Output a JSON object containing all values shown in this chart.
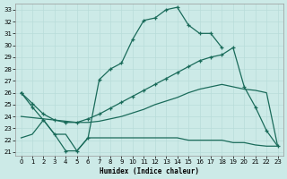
{
  "xlabel": "Humidex (Indice chaleur)",
  "bg_color": "#cceae7",
  "line_color": "#1a6b5a",
  "grid_color": "#b8ddd9",
  "xlim": [
    -0.5,
    23.5
  ],
  "ylim": [
    20.7,
    33.5
  ],
  "xticks": [
    0,
    1,
    2,
    3,
    4,
    5,
    6,
    7,
    8,
    9,
    10,
    11,
    12,
    13,
    14,
    15,
    16,
    17,
    18,
    19,
    20,
    21,
    22,
    23
  ],
  "yticks": [
    21,
    22,
    23,
    24,
    25,
    26,
    27,
    28,
    29,
    30,
    31,
    32,
    33
  ],
  "c1_x": [
    0,
    1,
    2,
    3,
    4,
    5,
    6,
    7,
    8,
    9,
    10,
    11,
    12,
    13,
    14,
    15,
    16,
    17,
    18
  ],
  "c1_y": [
    26.0,
    24.8,
    23.7,
    22.5,
    21.1,
    21.1,
    22.2,
    27.1,
    28.0,
    28.5,
    30.5,
    32.1,
    32.3,
    33.0,
    33.2,
    31.7,
    31.0,
    31.0,
    29.8
  ],
  "c2_x": [
    0,
    1,
    2,
    3,
    4,
    5,
    6,
    7,
    8,
    9,
    10,
    11,
    12,
    13,
    14,
    15,
    16,
    17,
    18,
    19,
    20,
    21,
    22,
    23
  ],
  "c2_y": [
    26.0,
    25.1,
    24.2,
    23.7,
    23.5,
    23.5,
    23.8,
    24.2,
    24.7,
    25.2,
    25.7,
    26.2,
    26.7,
    27.2,
    27.7,
    28.2,
    28.7,
    29.0,
    29.2,
    29.8,
    26.5,
    24.8,
    22.8,
    21.5
  ],
  "c3_x": [
    0,
    1,
    2,
    3,
    4,
    5,
    6,
    7,
    8,
    9,
    10,
    11,
    12,
    13,
    14,
    15,
    16,
    17,
    18,
    19,
    20,
    21,
    22,
    23
  ],
  "c3_y": [
    24.0,
    23.9,
    23.8,
    23.7,
    23.6,
    23.5,
    23.5,
    23.6,
    23.8,
    24.0,
    24.3,
    24.6,
    25.0,
    25.3,
    25.6,
    26.0,
    26.3,
    26.5,
    26.7,
    26.5,
    26.3,
    26.2,
    26.0,
    21.5
  ],
  "c4_x": [
    0,
    1,
    2,
    3,
    4,
    5,
    6,
    7,
    8,
    9,
    10,
    11,
    12,
    13,
    14,
    15,
    16,
    17,
    18,
    19,
    20,
    21,
    22,
    23
  ],
  "c4_y": [
    22.2,
    22.5,
    23.7,
    22.5,
    22.5,
    21.1,
    22.2,
    22.2,
    22.2,
    22.2,
    22.2,
    22.2,
    22.2,
    22.2,
    22.2,
    22.0,
    22.0,
    22.0,
    22.0,
    21.8,
    21.8,
    21.6,
    21.5,
    21.5
  ]
}
